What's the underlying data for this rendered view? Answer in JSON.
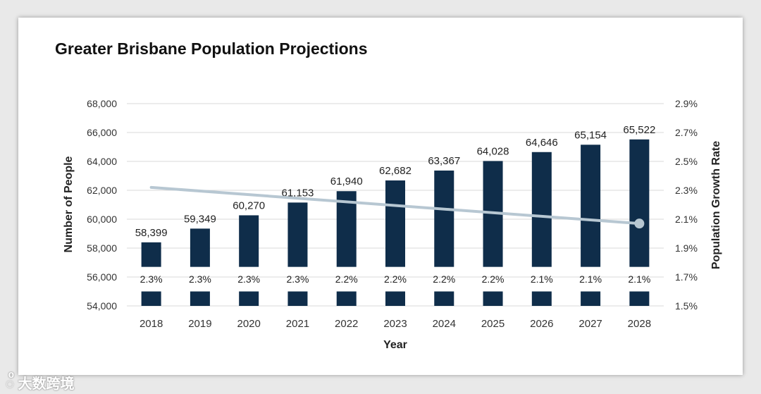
{
  "chart_data": {
    "type": "bar",
    "title": "Greater Brisbane Population Projections",
    "xlabel": "Year",
    "ylabel": "Number of People",
    "y2label": "Population Growth Rate",
    "categories": [
      "2018",
      "2019",
      "2020",
      "2021",
      "2022",
      "2023",
      "2024",
      "2025",
      "2026",
      "2027",
      "2028"
    ],
    "series": [
      {
        "name": "Population",
        "type": "bar",
        "axis": "left",
        "color": "#0f2d4a",
        "values": [
          58399,
          59349,
          60270,
          61153,
          61940,
          62682,
          63367,
          64028,
          64646,
          65154,
          65522
        ],
        "labels": [
          "58,399",
          "59,349",
          "60,270",
          "61,153",
          "61,940",
          "62,682",
          "63,367",
          "64,028",
          "64,646",
          "65,154",
          "65,522"
        ]
      },
      {
        "name": "Growth Rate",
        "type": "line",
        "axis": "right",
        "color": "#b7c7d2",
        "values": [
          2.3,
          2.3,
          2.3,
          2.3,
          2.2,
          2.2,
          2.2,
          2.2,
          2.1,
          2.1,
          2.1
        ],
        "labels": [
          "2.3%",
          "2.3%",
          "2.3%",
          "2.3%",
          "2.2%",
          "2.2%",
          "2.2%",
          "2.2%",
          "2.1%",
          "2.1%",
          "2.1%"
        ]
      }
    ],
    "trend": {
      "start": 2.32,
      "end": 2.07
    },
    "ylim": [
      54000,
      68000
    ],
    "y2lim": [
      1.5,
      2.9
    ],
    "yticks": [
      "54,000",
      "56,000",
      "58,000",
      "60,000",
      "62,000",
      "64,000",
      "66,000",
      "68,000"
    ],
    "y2ticks": [
      "1.5%",
      "1.7%",
      "1.9%",
      "2.1%",
      "2.3%",
      "2.5%",
      "2.7%",
      "2.9%"
    ],
    "grid": true,
    "legend": "none"
  },
  "watermark": "大数跨境"
}
